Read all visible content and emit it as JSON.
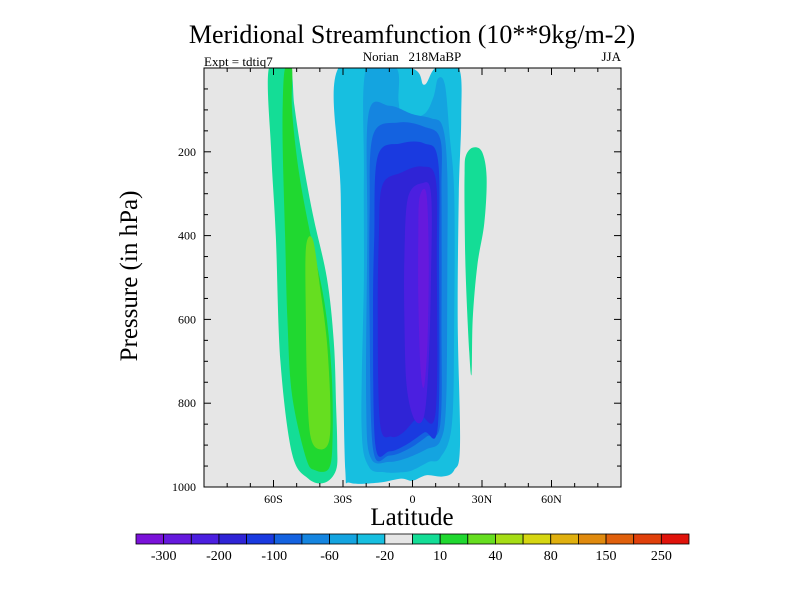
{
  "chart_data": {
    "type": "contour",
    "title": "Meridional Streamfunction (10**9kg/m-2)",
    "subtitle_left": "Expt = tdtiq7",
    "subtitle_center": "Norian   218MaBP",
    "subtitle_right": "JJA",
    "xlabel": "Latitude",
    "ylabel": "Pressure (in hPa)",
    "xlim": [
      -90,
      90
    ],
    "ylim": [
      1000,
      0
    ],
    "x_ticks": [
      {
        "value": -60,
        "label": "60S"
      },
      {
        "value": -30,
        "label": "30S"
      },
      {
        "value": 0,
        "label": "0"
      },
      {
        "value": 30,
        "label": "30N"
      },
      {
        "value": 60,
        "label": "60N"
      }
    ],
    "y_ticks": [
      {
        "value": 200,
        "label": "200"
      },
      {
        "value": 400,
        "label": "400"
      },
      {
        "value": 600,
        "label": "600"
      },
      {
        "value": 800,
        "label": "800"
      },
      {
        "value": 1000,
        "label": "1000"
      }
    ],
    "background_color": "#e6e6e6",
    "colorbar": {
      "colors": [
        "#7a12d9",
        "#6519dd",
        "#4b1fe0",
        "#2f24d6",
        "#1a3ae0",
        "#1462e0",
        "#1585e0",
        "#14a4e0",
        "#17bfe0",
        "#e6e6e6",
        "#14dd96",
        "#20d830",
        "#66de20",
        "#a6dd15",
        "#d6d612",
        "#e0b00f",
        "#e08a0e",
        "#e0600c",
        "#e0400b",
        "#e0130b"
      ],
      "labels": [
        {
          "boundary": 1,
          "text": "-300"
        },
        {
          "boundary": 3,
          "text": "-200"
        },
        {
          "boundary": 5,
          "text": "-100"
        },
        {
          "boundary": 7,
          "text": "-60"
        },
        {
          "boundary": 9,
          "text": "-20"
        },
        {
          "boundary": 11,
          "text": "10"
        },
        {
          "boundary": 13,
          "text": "40"
        },
        {
          "boundary": 15,
          "text": "80"
        },
        {
          "boundary": 17,
          "text": "150"
        },
        {
          "boundary": 19,
          "text": "250"
        }
      ]
    },
    "contour_regions": [
      {
        "name": "contour-southern-cell-10",
        "value": 10,
        "color": "#14dd96",
        "points": [
          [
            -62,
            0.05
          ],
          [
            -53,
            0.05
          ],
          [
            -51,
            90
          ],
          [
            -48,
            200
          ],
          [
            -43,
            350
          ],
          [
            -37,
            500
          ],
          [
            -34,
            650
          ],
          [
            -33,
            800
          ],
          [
            -32.5,
            900
          ],
          [
            -33,
            960
          ],
          [
            -38,
            990
          ],
          [
            -45,
            980
          ],
          [
            -52,
            920
          ],
          [
            -57,
            700
          ],
          [
            -59,
            400
          ],
          [
            -61,
            200
          ]
        ]
      },
      {
        "name": "contour-southern-cell-40",
        "value": 40,
        "color": "#20d830",
        "points": [
          [
            -55,
            0.05
          ],
          [
            -52,
            0.05
          ],
          [
            -52,
            100
          ],
          [
            -49,
            250
          ],
          [
            -44,
            400
          ],
          [
            -38,
            560
          ],
          [
            -35,
            720
          ],
          [
            -34.5,
            880
          ],
          [
            -36,
            955
          ],
          [
            -42,
            960
          ],
          [
            -46,
            930
          ],
          [
            -52,
            780
          ],
          [
            -54,
            600
          ],
          [
            -55,
            400
          ],
          [
            -56,
            200
          ],
          [
            -56,
            80
          ]
        ]
      },
      {
        "name": "contour-southern-cell-80",
        "value": 80,
        "color": "#66de20",
        "points": [
          [
            -46,
            430
          ],
          [
            -43,
            410
          ],
          [
            -40,
            520
          ],
          [
            -37,
            650
          ],
          [
            -35.5,
            800
          ],
          [
            -36,
            890
          ],
          [
            -40,
            910
          ],
          [
            -44,
            880
          ],
          [
            -45.5,
            760
          ],
          [
            -46,
            600
          ]
        ]
      },
      {
        "name": "contour-equatorial-cell-neg10",
        "value": -10,
        "color": "#17bfe0",
        "points": [
          [
            -32,
            0.05
          ],
          [
            -1,
            0.05
          ],
          [
            5,
            40
          ],
          [
            10,
            0.05
          ],
          [
            20,
            0.05
          ],
          [
            21,
            120
          ],
          [
            20,
            300
          ],
          [
            19.5,
            600
          ],
          [
            20.5,
            900
          ],
          [
            18,
            960
          ],
          [
            13,
            975
          ],
          [
            6,
            972
          ],
          [
            0,
            985
          ],
          [
            -5,
            980
          ],
          [
            -15,
            990
          ],
          [
            -27,
            990
          ],
          [
            -29,
            960
          ],
          [
            -30,
            700
          ],
          [
            -31,
            300
          ]
        ]
      },
      {
        "name": "contour-equatorial-cell-neg20",
        "value": -20,
        "color": "#14a4e0",
        "points": [
          [
            -20,
            0.05
          ],
          [
            -7,
            0.05
          ],
          [
            -6,
            80
          ],
          [
            -4,
            120
          ],
          [
            5,
            110
          ],
          [
            9,
            70
          ],
          [
            11,
            25
          ],
          [
            14,
            40
          ],
          [
            16,
            160
          ],
          [
            18,
            300
          ],
          [
            18,
            600
          ],
          [
            17,
            850
          ],
          [
            12,
            930
          ],
          [
            7,
            940
          ],
          [
            0,
            960
          ],
          [
            -5,
            965
          ],
          [
            -12,
            965
          ],
          [
            -19,
            950
          ],
          [
            -22,
            850
          ],
          [
            -21,
            500
          ],
          [
            -21,
            250
          ]
        ]
      },
      {
        "name": "contour-equatorial-cell-neg40",
        "value": -40,
        "color": "#1585e0",
        "points": [
          [
            -19,
            110
          ],
          [
            -10,
            90
          ],
          [
            0,
            110
          ],
          [
            8,
            120
          ],
          [
            13,
            140
          ],
          [
            15,
            250
          ],
          [
            15,
            500
          ],
          [
            14.5,
            800
          ],
          [
            12,
            890
          ],
          [
            6,
            910
          ],
          [
            -2,
            930
          ],
          [
            -10,
            940
          ],
          [
            -18,
            930
          ],
          [
            -20,
            800
          ],
          [
            -19.5,
            400
          ]
        ]
      },
      {
        "name": "contour-equatorial-cell-neg60",
        "value": -60,
        "color": "#1462e0",
        "points": [
          [
            -17,
            160
          ],
          [
            -6,
            130
          ],
          [
            5,
            140
          ],
          [
            12,
            170
          ],
          [
            12.5,
            300
          ],
          [
            12.5,
            600
          ],
          [
            12,
            850
          ],
          [
            6,
            880
          ],
          [
            -2,
            910
          ],
          [
            -10,
            925
          ],
          [
            -17,
            910
          ],
          [
            -18.5,
            600
          ],
          [
            -18.5,
            350
          ]
        ]
      },
      {
        "name": "contour-equatorial-cell-neg80",
        "value": -80,
        "color": "#1a3ae0",
        "points": [
          [
            -15,
            210
          ],
          [
            -5,
            180
          ],
          [
            5,
            180
          ],
          [
            11,
            220
          ],
          [
            11.5,
            450
          ],
          [
            11,
            850
          ],
          [
            5,
            870
          ],
          [
            -3,
            900
          ],
          [
            -10,
            915
          ],
          [
            -16,
            900
          ],
          [
            -17,
            600
          ],
          [
            -16.5,
            400
          ]
        ]
      },
      {
        "name": "contour-equatorial-cell-neg100",
        "value": -100,
        "color": "#2f24d6",
        "points": [
          [
            -13,
            280
          ],
          [
            -5,
            250
          ],
          [
            4,
            235
          ],
          [
            10,
            265
          ],
          [
            10.5,
            450
          ],
          [
            10,
            820
          ],
          [
            3,
            830
          ],
          [
            -4,
            870
          ],
          [
            -9,
            880
          ],
          [
            -14,
            850
          ],
          [
            -15,
            600
          ],
          [
            -14.5,
            400
          ]
        ]
      },
      {
        "name": "contour-equatorial-cell-neg150",
        "value": -150,
        "color": "#4b1fe0",
        "points": [
          [
            -2,
            310
          ],
          [
            4,
            275
          ],
          [
            8,
            300
          ],
          [
            8,
            500
          ],
          [
            7,
            700
          ],
          [
            5,
            830
          ],
          [
            1,
            840
          ],
          [
            -2.5,
            760
          ],
          [
            -3.5,
            600
          ],
          [
            -3.5,
            450
          ]
        ]
      },
      {
        "name": "contour-equatorial-cell-neg200",
        "value": -200,
        "color": "#6519dd",
        "points": [
          [
            3,
            310
          ],
          [
            6,
            300
          ],
          [
            7,
            450
          ],
          [
            6.5,
            650
          ],
          [
            5,
            760
          ],
          [
            3.5,
            720
          ],
          [
            2.5,
            550
          ],
          [
            2.5,
            400
          ]
        ]
      },
      {
        "name": "contour-northern-tongue-10",
        "value": 10,
        "color": "#14dd96",
        "points": [
          [
            23,
            210
          ],
          [
            26,
            190
          ],
          [
            30,
            200
          ],
          [
            32,
            260
          ],
          [
            31,
            370
          ],
          [
            28,
            470
          ],
          [
            26,
            600
          ],
          [
            25.5,
            730
          ],
          [
            24.5,
            680
          ],
          [
            23,
            500
          ],
          [
            22.5,
            350
          ],
          [
            22.5,
            250
          ]
        ]
      }
    ]
  }
}
